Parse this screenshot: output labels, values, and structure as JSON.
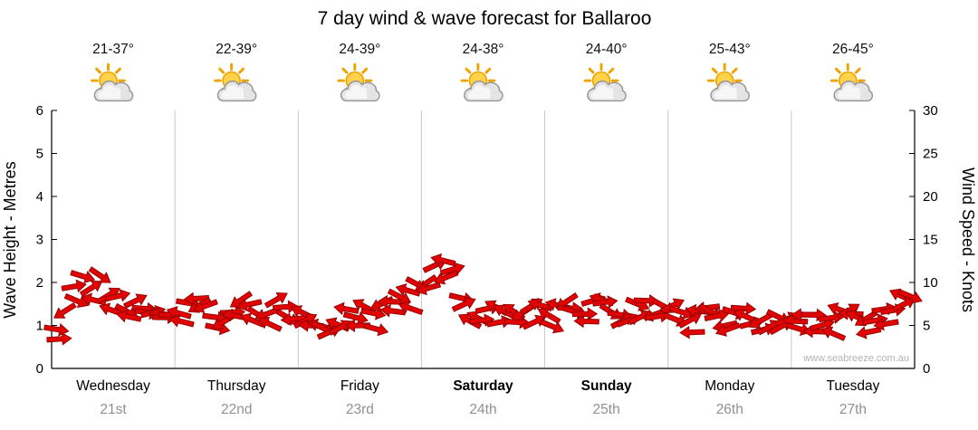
{
  "title": "7 day wind & wave forecast for Ballaroo",
  "watermark": "www.seabreeze.com.au",
  "colors": {
    "arrow_fill": "#e00404",
    "arrow_stroke": "#8f0000",
    "grid_line": "#c8c8c8",
    "axis_line": "#000000",
    "date_text": "#909090",
    "watermark_text": "#b4b4b4",
    "sun": "#ffd24a",
    "sun_ray": "#f0a300",
    "cloud": "#e4e4e4"
  },
  "y_left": {
    "label": "Wave Height - Metres",
    "ticks": [
      0,
      1,
      2,
      3,
      4,
      5,
      6
    ],
    "min": 0,
    "max": 6
  },
  "y_right": {
    "label": "Wind Speed - Knots",
    "ticks": [
      0,
      5,
      10,
      15,
      20,
      25,
      30
    ],
    "min": 0,
    "max": 30
  },
  "days": [
    {
      "temp": "21-37°",
      "name": "Wednesday",
      "date": "21st",
      "bold": false,
      "icon": "sun-cloud"
    },
    {
      "temp": "22-39°",
      "name": "Thursday",
      "date": "22nd",
      "bold": false,
      "icon": "sun-cloud"
    },
    {
      "temp": "24-39°",
      "name": "Friday",
      "date": "23rd",
      "bold": false,
      "icon": "sun-cloud"
    },
    {
      "temp": "24-38°",
      "name": "Saturday",
      "date": "24th",
      "bold": true,
      "icon": "sun-cloud"
    },
    {
      "temp": "24-40°",
      "name": "Sunday",
      "date": "25th",
      "bold": true,
      "icon": "sun-cloud"
    },
    {
      "temp": "25-43°",
      "name": "Monday",
      "date": "26th",
      "bold": false,
      "icon": "sun-cloud"
    },
    {
      "temp": "26-45°",
      "name": "Tuesday",
      "date": "27th",
      "bold": false,
      "icon": "sun-cloud"
    }
  ],
  "chart_data": {
    "type": "area",
    "title": "7 day wind & wave forecast for Ballaroo",
    "x_categories": [
      "Wednesday 21st",
      "Thursday 22nd",
      "Friday 23rd",
      "Saturday 24th",
      "Sunday 25th",
      "Monday 26th",
      "Tuesday 27th"
    ],
    "samples_per_day": 14,
    "ylabel_left": "Wave Height - Metres",
    "ylabel_right": "Wind Speed - Knots",
    "ylim_left": [
      0,
      6
    ],
    "ylim_right": [
      0,
      30
    ],
    "legend": "none",
    "grid": "vertical-day-separators",
    "series": [
      {
        "name": "Wind Speed (knots)",
        "style": "red-wind-arrows",
        "values": [
          5,
          7,
          10,
          11,
          9.5,
          10.5,
          9,
          8,
          7,
          7.5,
          6.5,
          7,
          6,
          6.5,
          6,
          7.5,
          8.5,
          7,
          6,
          5.5,
          6.5,
          7.5,
          7,
          6,
          6.5,
          7.5,
          7,
          6,
          6,
          5.5,
          4.5,
          4,
          5.5,
          6.5,
          6,
          7,
          6.5,
          7.5,
          8,
          8.5,
          9,
          9.5,
          10,
          11.5,
          12.5,
          11,
          8,
          6,
          5.5,
          6.5,
          7,
          6.5,
          7,
          6.5,
          7.5,
          7,
          6.5,
          7.5,
          8,
          7,
          6.5,
          7.5,
          8,
          7,
          6.5,
          6,
          7,
          7.5,
          6.5,
          7,
          7.5,
          7,
          6,
          6.5,
          7.5,
          6.5,
          5.5,
          6,
          6.5,
          5.5,
          6,
          5,
          5.5,
          6,
          5.5,
          6,
          6.5,
          5.5,
          6,
          6.5,
          7,
          6,
          5.5,
          6,
          6.5,
          7,
          8,
          8.5
        ]
      }
    ]
  }
}
